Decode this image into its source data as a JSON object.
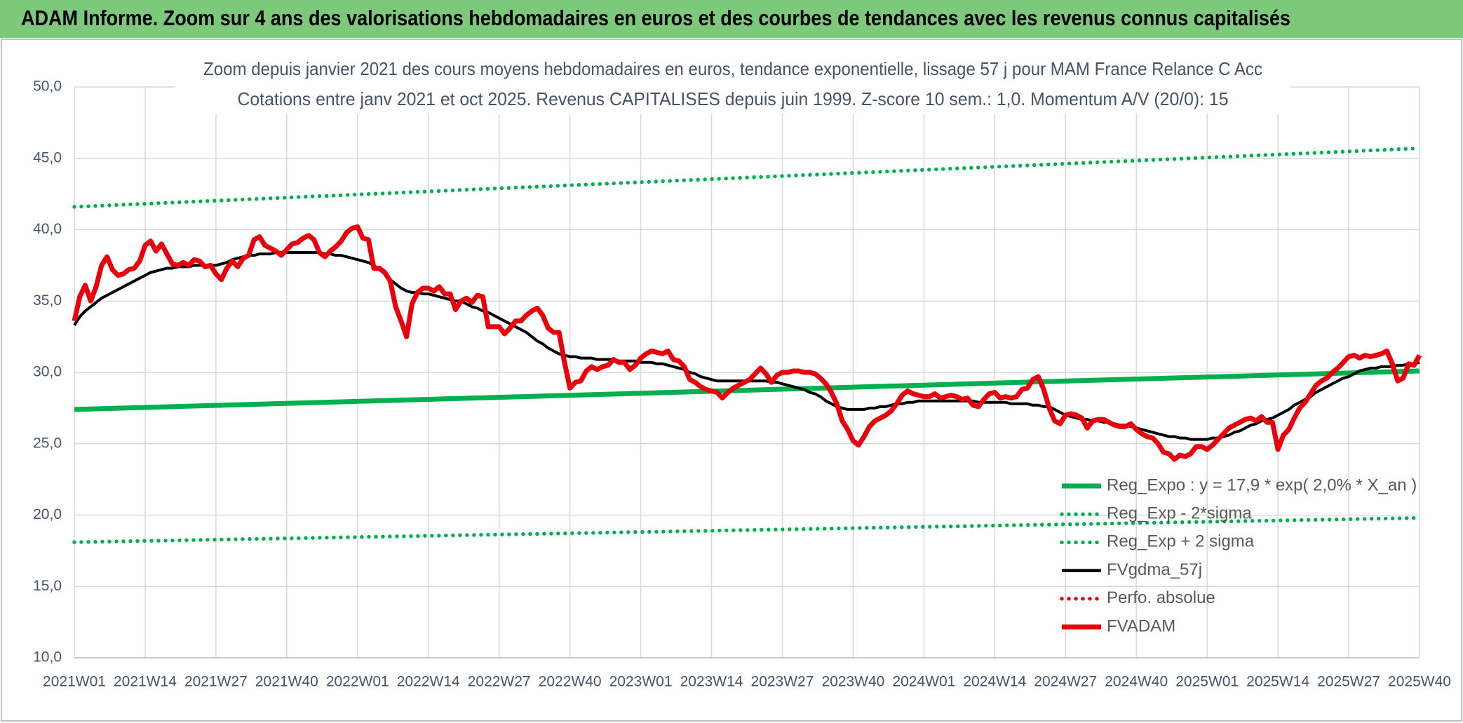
{
  "header": {
    "title": "ADAM Informe. Zoom sur 4 ans des valorisations hebdomadaires en euros et des courbes de tendances avec les revenus connus capitalisés"
  },
  "chart_data": {
    "type": "line",
    "subtitle": [
      "Zoom depuis janvier 2021 des cours moyens hebdomadaires en euros, tendance exponentielle, lissage 57 j pour MAM France Relance C Acc",
      "Cotations entre janv 2021 et oct 2025. Revenus CAPITALISES depuis juin 1999. Z-score 10 sem.: 1,0. Momentum A/V (20/0): 15"
    ],
    "categories": [
      "2021W01",
      null,
      null,
      null,
      null,
      null,
      null,
      null,
      null,
      null,
      null,
      null,
      null,
      "2021W14",
      null,
      null,
      null,
      null,
      null,
      null,
      null,
      null,
      null,
      null,
      null,
      null,
      "2021W27",
      null,
      null,
      null,
      null,
      null,
      null,
      null,
      null,
      null,
      null,
      null,
      null,
      "2021W40",
      null,
      null,
      null,
      null,
      null,
      null,
      null,
      null,
      null,
      null,
      null,
      null,
      "2022W01",
      null,
      null,
      null,
      null,
      null,
      null,
      null,
      null,
      null,
      null,
      null,
      null,
      "2022W14",
      null,
      null,
      null,
      null,
      null,
      null,
      null,
      null,
      null,
      null,
      null,
      null,
      "2022W27",
      null,
      null,
      null,
      null,
      null,
      null,
      null,
      null,
      null,
      null,
      null,
      null,
      "2022W40",
      null,
      null,
      null,
      null,
      null,
      null,
      null,
      null,
      null,
      null,
      null,
      null,
      "2023W01",
      null,
      null,
      null,
      null,
      null,
      null,
      null,
      null,
      null,
      null,
      null,
      null,
      "2023W14",
      null,
      null,
      null,
      null,
      null,
      null,
      null,
      null,
      null,
      null,
      null,
      null,
      "2023W27",
      null,
      null,
      null,
      null,
      null,
      null,
      null,
      null,
      null,
      null,
      null,
      null,
      "2023W40",
      null,
      null,
      null,
      null,
      null,
      null,
      null,
      null,
      null,
      null,
      null,
      null,
      "2024W01",
      null,
      null,
      null,
      null,
      null,
      null,
      null,
      null,
      null,
      null,
      null,
      null,
      "2024W14",
      null,
      null,
      null,
      null,
      null,
      null,
      null,
      null,
      null,
      null,
      null,
      null,
      "2024W27",
      null,
      null,
      null,
      null,
      null,
      null,
      null,
      null,
      null,
      null,
      null,
      null,
      "2024W40",
      null,
      null,
      null,
      null,
      null,
      null,
      null,
      null,
      null,
      null,
      null,
      null,
      "2025W01",
      null,
      null,
      null,
      null,
      null,
      null,
      null,
      null,
      null,
      null,
      null,
      null,
      "2025W14",
      null,
      null,
      null,
      null,
      null,
      null,
      null,
      null,
      null,
      null,
      null,
      null,
      "2025W27",
      null,
      null,
      null,
      null,
      null,
      null,
      null,
      null,
      null,
      null,
      null,
      null,
      "2025W40"
    ],
    "series": [
      {
        "name": "Reg_Expo : y = 17,9 * exp( 2,0% *  X_an )",
        "color": "#00b050",
        "style": "solid",
        "trend": [
          27.4,
          30.1
        ]
      },
      {
        "name": "Reg_Exp - 2*sigma",
        "color": "#00b050",
        "style": "dotted",
        "trend": [
          18.1,
          19.8
        ]
      },
      {
        "name": "Reg_Exp + 2 sigma",
        "color": "#00b050",
        "style": "dotted",
        "trend": [
          41.6,
          45.7
        ]
      },
      {
        "name": "FVgdma_57j",
        "color": "#000000",
        "style": "solid",
        "values": [
          33.3,
          33.9,
          34.3,
          34.6,
          34.9,
          35.2,
          35.4,
          35.6,
          35.8,
          36.0,
          36.2,
          36.4,
          36.6,
          36.8,
          37.0,
          37.1,
          37.2,
          37.3,
          37.3,
          37.4,
          37.4,
          37.4,
          37.5,
          37.5,
          37.5,
          37.5,
          37.5,
          37.6,
          37.7,
          37.9,
          38.0,
          38.1,
          38.2,
          38.2,
          38.3,
          38.3,
          38.3,
          38.4,
          38.4,
          38.4,
          38.4,
          38.4,
          38.4,
          38.4,
          38.4,
          38.4,
          38.3,
          38.3,
          38.2,
          38.2,
          38.1,
          38.0,
          37.9,
          37.8,
          37.7,
          37.5,
          37.2,
          36.9,
          36.5,
          36.2,
          35.9,
          35.7,
          35.6,
          35.6,
          35.5,
          35.5,
          35.4,
          35.3,
          35.2,
          35.1,
          35.0,
          35.0,
          34.8,
          34.6,
          34.5,
          34.3,
          34.2,
          34.0,
          33.8,
          33.6,
          33.4,
          33.2,
          33.0,
          32.8,
          32.5,
          32.2,
          32.0,
          31.7,
          31.5,
          31.3,
          31.2,
          31.1,
          31.1,
          31.0,
          31.0,
          31.0,
          30.9,
          30.9,
          30.9,
          30.9,
          30.8,
          30.8,
          30.8,
          30.8,
          30.7,
          30.7,
          30.7,
          30.6,
          30.6,
          30.5,
          30.4,
          30.3,
          30.2,
          30.0,
          29.9,
          29.7,
          29.6,
          29.5,
          29.4,
          29.4,
          29.4,
          29.4,
          29.4,
          29.4,
          29.4,
          29.4,
          29.4,
          29.4,
          29.3,
          29.3,
          29.2,
          29.1,
          29.0,
          28.9,
          28.8,
          28.6,
          28.5,
          28.3,
          28.0,
          27.8,
          27.6,
          27.5,
          27.4,
          27.4,
          27.4,
          27.4,
          27.5,
          27.5,
          27.6,
          27.6,
          27.7,
          27.8,
          27.8,
          27.9,
          27.9,
          28.0,
          28.0,
          28.0,
          28.0,
          28.0,
          28.0,
          28.0,
          28.0,
          28.0,
          28.0,
          28.0,
          27.9,
          27.9,
          27.9,
          27.9,
          27.9,
          27.9,
          27.8,
          27.8,
          27.8,
          27.8,
          27.7,
          27.7,
          27.6,
          27.6,
          27.4,
          27.2,
          27.0,
          26.9,
          26.8,
          26.7,
          26.7,
          26.6,
          26.6,
          26.5,
          26.5,
          26.4,
          26.3,
          26.3,
          26.2,
          26.1,
          26.0,
          25.9,
          25.8,
          25.7,
          25.6,
          25.5,
          25.5,
          25.4,
          25.4,
          25.3,
          25.3,
          25.3,
          25.3,
          25.4,
          25.4,
          25.5,
          25.6,
          25.8,
          25.9,
          26.1,
          26.3,
          26.4,
          26.6,
          26.7,
          26.8,
          27.0,
          27.2,
          27.4,
          27.7,
          27.9,
          28.1,
          28.3,
          28.6,
          28.8,
          29.0,
          29.2,
          29.4,
          29.6,
          29.7,
          29.9,
          30.1,
          30.2,
          30.3,
          30.3,
          30.4,
          30.4,
          30.4,
          30.5,
          30.5,
          30.6,
          30.6,
          30.7
        ]
      },
      {
        "name": "Perfo. absolue",
        "color": "#e8000b",
        "style": "dotted"
      },
      {
        "name": "FVADAM",
        "color": "#e8000b",
        "style": "solid",
        "values": [
          33.6,
          35.3,
          36.1,
          35.0,
          36.0,
          37.5,
          38.1,
          37.2,
          36.8,
          36.9,
          37.2,
          37.3,
          37.8,
          38.9,
          39.2,
          38.5,
          39.0,
          38.3,
          37.6,
          37.5,
          37.7,
          37.5,
          37.9,
          37.8,
          37.4,
          37.5,
          36.9,
          36.5,
          37.3,
          37.8,
          37.4,
          38.0,
          38.2,
          39.3,
          39.5,
          38.9,
          38.7,
          38.5,
          38.2,
          38.6,
          39.0,
          39.1,
          39.4,
          39.6,
          39.3,
          38.4,
          38.1,
          38.5,
          38.8,
          39.2,
          39.8,
          40.1,
          40.2,
          39.4,
          39.3,
          37.3,
          37.3,
          37.0,
          36.4,
          34.6,
          33.6,
          32.5,
          34.8,
          35.6,
          35.9,
          35.9,
          35.7,
          36.0,
          35.5,
          35.5,
          34.4,
          35.0,
          35.2,
          34.9,
          35.4,
          35.3,
          33.2,
          33.2,
          33.2,
          32.7,
          33.1,
          33.6,
          33.6,
          34.0,
          34.3,
          34.5,
          34.0,
          33.1,
          32.8,
          32.8,
          30.7,
          28.9,
          29.3,
          29.4,
          30.1,
          30.4,
          30.2,
          30.4,
          30.5,
          30.9,
          30.7,
          30.7,
          30.2,
          30.5,
          31.0,
          31.3,
          31.5,
          31.4,
          31.3,
          31.5,
          30.9,
          30.8,
          30.4,
          29.5,
          29.3,
          29.0,
          28.8,
          28.7,
          28.6,
          28.2,
          28.6,
          28.9,
          29.1,
          29.3,
          29.5,
          29.9,
          30.3,
          29.9,
          29.3,
          29.8,
          30.0,
          30.0,
          30.1,
          30.1,
          30.0,
          30.0,
          29.9,
          29.6,
          29.2,
          28.6,
          27.8,
          26.6,
          26.0,
          25.2,
          24.9,
          25.5,
          26.2,
          26.6,
          26.8,
          27.0,
          27.3,
          27.8,
          28.4,
          28.7,
          28.5,
          28.4,
          28.3,
          28.3,
          28.5,
          28.2,
          28.3,
          28.4,
          28.3,
          28.1,
          28.2,
          27.7,
          27.6,
          28.1,
          28.5,
          28.6,
          28.2,
          28.3,
          28.2,
          28.3,
          28.8,
          28.9,
          29.5,
          29.7,
          28.8,
          27.5,
          26.6,
          26.4,
          27.0,
          27.1,
          27.0,
          26.8,
          26.1,
          26.6,
          26.7,
          26.7,
          26.5,
          26.3,
          26.2,
          26.2,
          26.4,
          26.0,
          25.7,
          25.5,
          25.4,
          25.0,
          24.4,
          24.3,
          23.9,
          24.2,
          24.1,
          24.3,
          24.8,
          24.8,
          24.6,
          24.9,
          25.3,
          25.7,
          26.1,
          26.3,
          26.5,
          26.7,
          26.8,
          26.6,
          26.9,
          26.5,
          26.5,
          24.6,
          25.6,
          26.0,
          26.8,
          27.5,
          27.9,
          28.5,
          29.1,
          29.4,
          29.6,
          30.0,
          30.3,
          30.7,
          31.1,
          31.2,
          31.0,
          31.2,
          31.1,
          31.2,
          31.3,
          31.5,
          30.6,
          29.4,
          29.6,
          30.6,
          30.5,
          31.2
        ]
      }
    ],
    "ylim": [
      10,
      50
    ],
    "yticks": [
      {
        "value": 10,
        "label": "10,0"
      },
      {
        "value": 15,
        "label": "15,0"
      },
      {
        "value": 20,
        "label": "20,0"
      },
      {
        "value": 25,
        "label": "25,0"
      },
      {
        "value": 30,
        "label": "30,0"
      },
      {
        "value": 35,
        "label": "35,0"
      },
      {
        "value": 40,
        "label": "40,0"
      },
      {
        "value": 45,
        "label": "45,0"
      },
      {
        "value": 50,
        "label": "50,0"
      }
    ],
    "grid": true
  }
}
